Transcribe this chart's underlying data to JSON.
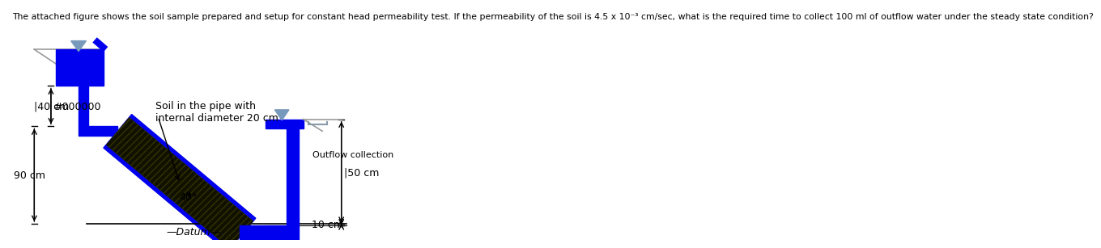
{
  "title": "The attached figure shows the soil sample prepared and setup for constant head permeability test. If the permeability of the soil is 4.5 x 10⁻³ cm/sec, what is the required time to collect 100 ml of outflow water under the steady state condition?",
  "blue": "#0000EE",
  "soil_dark": "#1a1a00",
  "bg": "#FFFFFF",
  "gray": "#999999",
  "light_blue_tri": "#7799BB",
  "beaker_edge": "#8899AA",
  "tc": "#000000"
}
